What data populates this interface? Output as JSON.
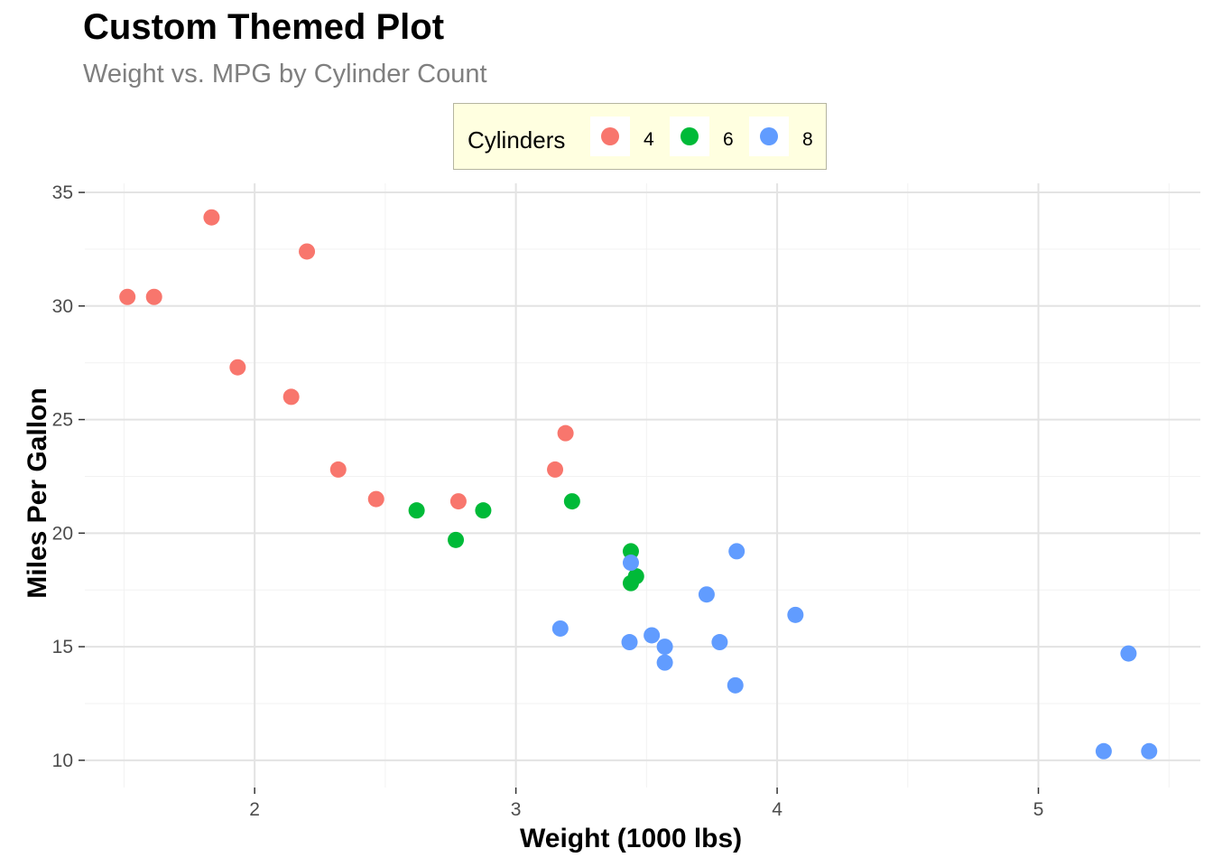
{
  "chart_data": {
    "type": "scatter",
    "title": "Custom Themed Plot",
    "subtitle": "Weight vs. MPG by Cylinder Count",
    "xlabel": "Weight (1000 lbs)",
    "ylabel": "Miles Per Gallon",
    "xlim": [
      1.35,
      5.62
    ],
    "ylim": [
      8.8,
      35.4
    ],
    "x_ticks": [
      2,
      3,
      4,
      5
    ],
    "y_ticks": [
      10,
      15,
      20,
      25,
      30,
      35
    ],
    "grid": true,
    "legend": {
      "title": "Cylinders",
      "position": "top",
      "background": "#ffffe0"
    },
    "series": [
      {
        "name": "4",
        "color": "#f8766d",
        "points": [
          {
            "x": 2.32,
            "y": 22.8
          },
          {
            "x": 3.19,
            "y": 24.4
          },
          {
            "x": 3.15,
            "y": 22.8
          },
          {
            "x": 2.2,
            "y": 32.4
          },
          {
            "x": 1.615,
            "y": 30.4
          },
          {
            "x": 1.835,
            "y": 33.9
          },
          {
            "x": 2.465,
            "y": 21.5
          },
          {
            "x": 1.935,
            "y": 27.3
          },
          {
            "x": 2.14,
            "y": 26.0
          },
          {
            "x": 1.513,
            "y": 30.4
          },
          {
            "x": 2.78,
            "y": 21.4
          }
        ]
      },
      {
        "name": "6",
        "color": "#00ba38",
        "points": [
          {
            "x": 2.62,
            "y": 21.0
          },
          {
            "x": 2.875,
            "y": 21.0
          },
          {
            "x": 3.215,
            "y": 21.4
          },
          {
            "x": 3.46,
            "y": 18.1
          },
          {
            "x": 3.44,
            "y": 19.2
          },
          {
            "x": 3.44,
            "y": 17.8
          },
          {
            "x": 2.77,
            "y": 19.7
          }
        ]
      },
      {
        "name": "8",
        "color": "#619cff",
        "points": [
          {
            "x": 3.44,
            "y": 18.7
          },
          {
            "x": 3.57,
            "y": 14.3
          },
          {
            "x": 4.07,
            "y": 16.4
          },
          {
            "x": 3.73,
            "y": 17.3
          },
          {
            "x": 3.78,
            "y": 15.2
          },
          {
            "x": 5.25,
            "y": 10.4
          },
          {
            "x": 5.424,
            "y": 10.4
          },
          {
            "x": 5.345,
            "y": 14.7
          },
          {
            "x": 3.52,
            "y": 15.5
          },
          {
            "x": 3.435,
            "y": 15.2
          },
          {
            "x": 3.84,
            "y": 13.3
          },
          {
            "x": 3.845,
            "y": 19.2
          },
          {
            "x": 3.17,
            "y": 15.8
          },
          {
            "x": 3.57,
            "y": 15.0
          }
        ]
      }
    ]
  }
}
